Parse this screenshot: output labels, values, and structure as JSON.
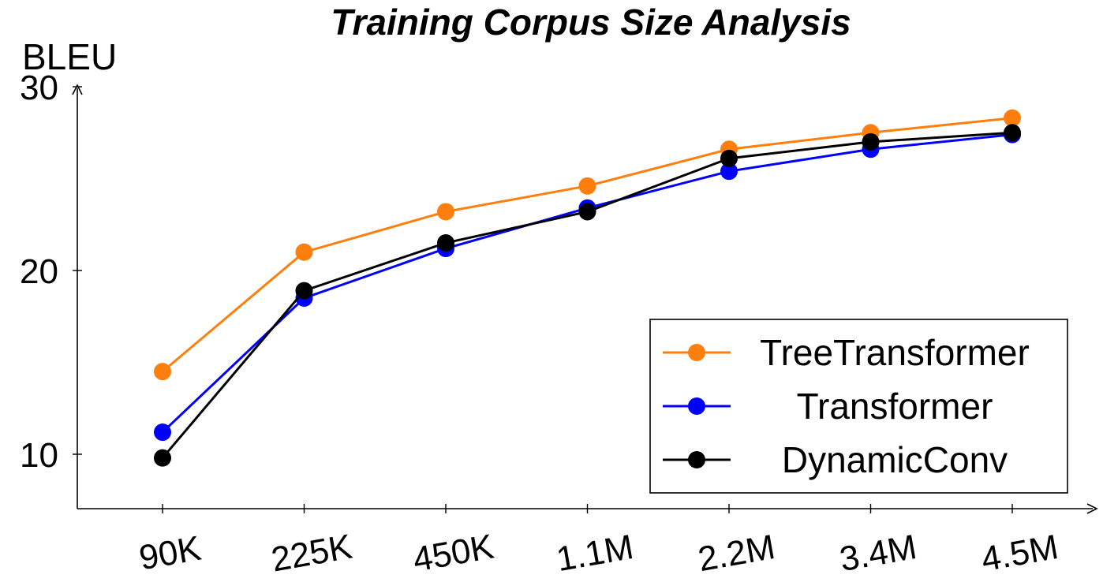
{
  "chart_data": {
    "type": "line",
    "title": "Training Corpus Size Analysis",
    "ylabel": "BLEU",
    "xlabel": "",
    "categories": [
      "90K",
      "225K",
      "450K",
      "1.1M",
      "2.2M",
      "3.4M",
      "4.5M"
    ],
    "ylim": [
      7.2,
      30
    ],
    "yticks": [
      10,
      20,
      30
    ],
    "grid": false,
    "legend_position": "bottom-right",
    "series": [
      {
        "name": "TreeTransformer",
        "color": "#ff7f0e",
        "values": [
          14.5,
          21.0,
          23.2,
          24.6,
          26.6,
          27.5,
          28.3
        ]
      },
      {
        "name": "Transformer",
        "color": "#0000ff",
        "values": [
          11.2,
          18.5,
          21.2,
          23.4,
          25.4,
          26.6,
          27.4
        ]
      },
      {
        "name": "DynamicConv",
        "color": "#000000",
        "values": [
          9.8,
          18.9,
          21.5,
          23.2,
          26.1,
          27.0,
          27.5
        ]
      }
    ]
  }
}
